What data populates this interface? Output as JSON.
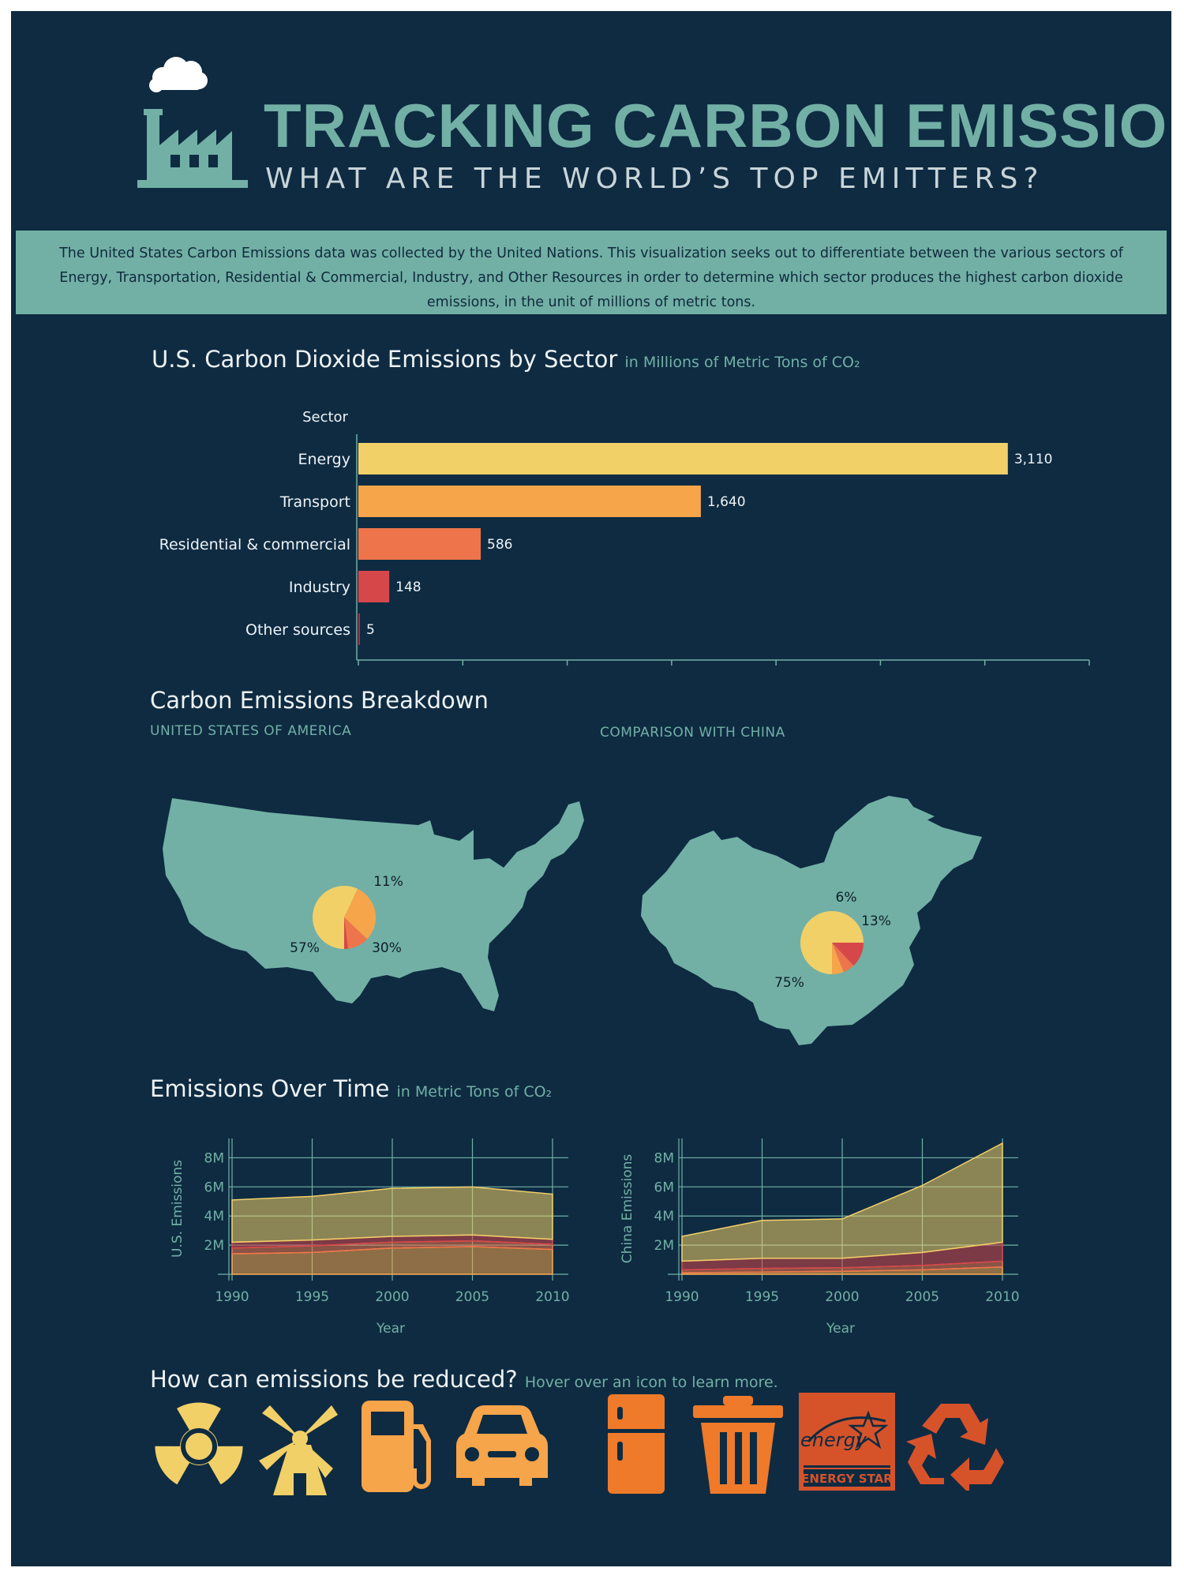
{
  "header": {
    "title": "TRACKING CARBON EMISSIONS",
    "subtitle": "WHAT ARE THE WORLD’S TOP EMITTERS?"
  },
  "intro": {
    "text": "The United States Carbon Emissions data was collected by the United Nations. This visualization seeks out to differentiate between the various sectors of Energy, Transportation, Residential & Commercial, Industry, and Other Resources in order to determine which sector produces the highest carbon dioxide emissions, in the unit of millions of metric tons."
  },
  "sections": {
    "bar_title": "U.S. Carbon Dioxide Emissions by Sector",
    "bar_subtitle": "in Millions of Metric Tons of CO₂",
    "breakdown_title": "Carbon Emissions Breakdown",
    "us_caption": "UNITED STATES OF AMERICA",
    "china_caption": "COMPARISON WITH CHINA",
    "time_title": "Emissions Over Time",
    "time_subtitle": "in Metric Tons of CO₂",
    "reduce_title": "How can emissions be reduced?",
    "reduce_subtitle": "Hover over an icon to learn more."
  },
  "colors": {
    "background": "#0e2b42",
    "teal": "#72b0a5",
    "energy": "#f2d068",
    "transport": "#f6a54a",
    "residential": "#ee744b",
    "industry": "#d6474a",
    "other": "#b52f3c"
  },
  "icons": [
    {
      "name": "radiation-icon",
      "color": "#f2d068"
    },
    {
      "name": "windmill-icon",
      "color": "#f2d068"
    },
    {
      "name": "gas-pump-icon",
      "color": "#f6a54a"
    },
    {
      "name": "car-icon",
      "color": "#f6a54a"
    },
    {
      "name": "refrigerator-icon",
      "color": "#ee7a2a"
    },
    {
      "name": "trash-can-icon",
      "color": "#ee7a2a"
    },
    {
      "name": "energy-star-icon",
      "color": "#d6532a",
      "label": "ENERGY STAR"
    },
    {
      "name": "recycle-icon",
      "color": "#d6532a"
    }
  ],
  "chart_data": [
    {
      "type": "bar",
      "orientation": "horizontal",
      "title": "U.S. Carbon Dioxide Emissions by Sector",
      "ylabel": "Sector",
      "categories": [
        "Energy",
        "Transport",
        "Residential & commercial",
        "Industry",
        "Other sources"
      ],
      "values": [
        3110,
        1640,
        586,
        148,
        5
      ],
      "value_labels": [
        "3,110",
        "1,640",
        "586",
        "148",
        "5"
      ],
      "xlim": [
        0,
        3500
      ],
      "xticks": [
        0,
        500,
        1000,
        1500,
        2000,
        2500,
        3000,
        3500
      ]
    },
    {
      "type": "pie",
      "title": "UNITED STATES OF AMERICA",
      "slices": [
        {
          "sector": "Energy",
          "value": 57,
          "label": "57%"
        },
        {
          "sector": "Transport",
          "value": 30,
          "label": "30%"
        },
        {
          "sector": "Residential & commercial",
          "value": 11,
          "label": "11%"
        },
        {
          "sector": "Industry",
          "value": 2,
          "label": ""
        }
      ]
    },
    {
      "type": "pie",
      "title": "COMPARISON WITH CHINA",
      "slices": [
        {
          "sector": "Energy",
          "value": 75,
          "label": "75%"
        },
        {
          "sector": "Industry",
          "value": 13,
          "label": "13%"
        },
        {
          "sector": "Residential & commercial",
          "value": 6,
          "label": ""
        },
        {
          "sector": "Transport",
          "value": 6,
          "label": "6%"
        }
      ]
    },
    {
      "type": "area",
      "stacked": true,
      "ylabel": "U.S. Emissions",
      "xlabel": "Year",
      "x": [
        1990,
        1995,
        2000,
        2005,
        2010
      ],
      "ylim": [
        0,
        9
      ],
      "yticks": [
        2,
        4,
        6,
        8
      ],
      "ytick_labels": [
        "2M",
        "4M",
        "6M",
        "8M"
      ],
      "grid": true,
      "series": [
        {
          "sector": "Transport",
          "values": [
            1.4,
            1.5,
            1.8,
            1.9,
            1.7
          ]
        },
        {
          "sector": "Residential & commercial",
          "values": [
            0.4,
            0.45,
            0.4,
            0.4,
            0.35
          ]
        },
        {
          "sector": "Industry",
          "values": [
            0.4,
            0.4,
            0.4,
            0.4,
            0.35
          ]
        },
        {
          "sector": "Energy",
          "values": [
            2.9,
            3.0,
            3.3,
            3.3,
            3.1
          ]
        }
      ]
    },
    {
      "type": "area",
      "stacked": true,
      "ylabel": "China Emissions",
      "xlabel": "Year",
      "x": [
        1990,
        1995,
        2000,
        2005,
        2010
      ],
      "ylim": [
        0,
        9
      ],
      "yticks": [
        2,
        4,
        6,
        8
      ],
      "ytick_labels": [
        "2M",
        "4M",
        "6M",
        "8M"
      ],
      "grid": true,
      "series": [
        {
          "sector": "Transport",
          "values": [
            0.1,
            0.15,
            0.2,
            0.3,
            0.5
          ]
        },
        {
          "sector": "Residential & commercial",
          "values": [
            0.2,
            0.25,
            0.25,
            0.3,
            0.4
          ]
        },
        {
          "sector": "Industry",
          "values": [
            0.6,
            0.7,
            0.65,
            0.9,
            1.3
          ]
        },
        {
          "sector": "Energy",
          "values": [
            1.7,
            2.6,
            2.7,
            4.6,
            6.8
          ]
        }
      ]
    }
  ]
}
